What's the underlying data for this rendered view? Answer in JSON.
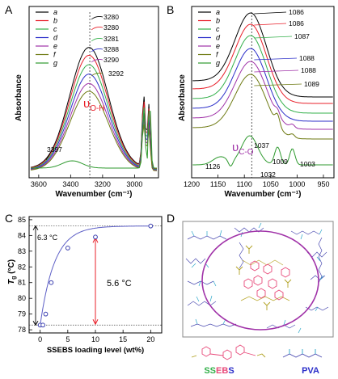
{
  "chart_data": [
    {
      "panel": "A",
      "type": "line",
      "xlabel": "Wavenumber (cm⁻¹)",
      "ylabel": "Absorbance",
      "x_ticks": [
        3600,
        3400,
        3200,
        3000
      ],
      "xlim": [
        3660,
        2850
      ],
      "mode_label": "υO-H",
      "legend": [
        "a",
        "b",
        "c",
        "d",
        "e",
        "f",
        "g"
      ],
      "peaks": [
        "3280",
        "3280",
        "3281",
        "3288",
        "3290",
        "3292"
      ],
      "extra_peak": "3397",
      "dashed_line_x": 3280
    },
    {
      "panel": "B",
      "type": "line",
      "xlabel": "Wavenumber (cm⁻¹)",
      "ylabel": "Absorbance",
      "x_ticks": [
        1200,
        1150,
        1100,
        1050,
        1000,
        950
      ],
      "xlim": [
        1200,
        930
      ],
      "mode_label": "υC-O",
      "legend": [
        "a",
        "b",
        "c",
        "d",
        "e",
        "f",
        "g"
      ],
      "peaks": [
        "1086",
        "1086",
        "1087",
        "1088",
        "1088",
        "1089"
      ],
      "extra_peaks": [
        "1037",
        "1009",
        "1126",
        "1032",
        "1003"
      ],
      "dashed_line_x": 1086
    },
    {
      "panel": "C",
      "type": "scatter",
      "xlabel": "SSEBS loading level (wt%)",
      "ylabel": "Tg (°C)",
      "x_ticks": [
        0,
        5,
        10,
        15,
        20
      ],
      "y_ticks": [
        78,
        79,
        80,
        81,
        82,
        83,
        84,
        85
      ],
      "xlim": [
        -2,
        22
      ],
      "ylim": [
        77.8,
        85.2
      ],
      "x": [
        0,
        0.5,
        1,
        2,
        5,
        10,
        20
      ],
      "y": [
        78.3,
        78.3,
        79.0,
        81.0,
        83.2,
        83.9,
        84.6
      ],
      "annotations": [
        "6.3 °C",
        "5.6 °C"
      ]
    }
  ],
  "labels": {
    "panel_a": "A",
    "panel_b": "B",
    "panel_c": "C",
    "panel_d": "D",
    "ssebs": "SSEBS",
    "pva": "PVA"
  },
  "colors": {
    "a": "#000000",
    "b": "#e8202a",
    "c": "#33b04a",
    "d": "#2b2ec9",
    "e": "#a032a8",
    "f": "#6e7a12",
    "g": "#2f9a2f",
    "accent_red": "#e8202a",
    "fit_line": "#5d5fc6",
    "marker": "#3b3fb0"
  }
}
